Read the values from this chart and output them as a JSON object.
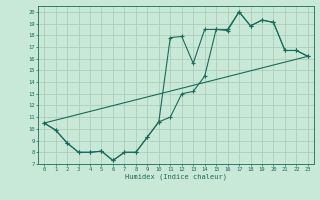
{
  "xlabel": "Humidex (Indice chaleur)",
  "xlim": [
    -0.5,
    23.5
  ],
  "ylim": [
    7,
    20.5
  ],
  "yticks": [
    7,
    8,
    9,
    10,
    11,
    12,
    13,
    14,
    15,
    16,
    17,
    18,
    19,
    20
  ],
  "xticks": [
    0,
    1,
    2,
    3,
    4,
    5,
    6,
    7,
    8,
    9,
    10,
    11,
    12,
    13,
    14,
    15,
    16,
    17,
    18,
    19,
    20,
    21,
    22,
    23
  ],
  "bg_color": "#c8e8d8",
  "line_color": "#1a6b5a",
  "grid_color": "#a8c8b8",
  "line1_y": [
    10.5,
    9.9,
    8.8,
    8.0,
    8.0,
    8.1,
    7.3,
    8.0,
    8.0,
    9.3,
    10.6,
    11.0,
    13.0,
    13.2,
    14.5,
    18.5,
    18.4,
    20.0,
    18.8,
    19.3,
    19.1,
    16.7,
    16.7,
    16.2
  ],
  "line2_y": [
    10.5,
    9.9,
    8.8,
    8.0,
    8.0,
    8.1,
    7.3,
    8.0,
    8.0,
    9.3,
    10.6,
    17.8,
    17.9,
    15.6,
    18.5,
    18.5,
    18.5,
    20.0,
    18.8,
    19.3,
    19.1,
    16.7,
    16.7,
    16.2
  ],
  "trend_x": [
    0,
    23
  ],
  "trend_y": [
    10.5,
    16.2
  ],
  "marker_size": 3,
  "linewidth": 0.8
}
